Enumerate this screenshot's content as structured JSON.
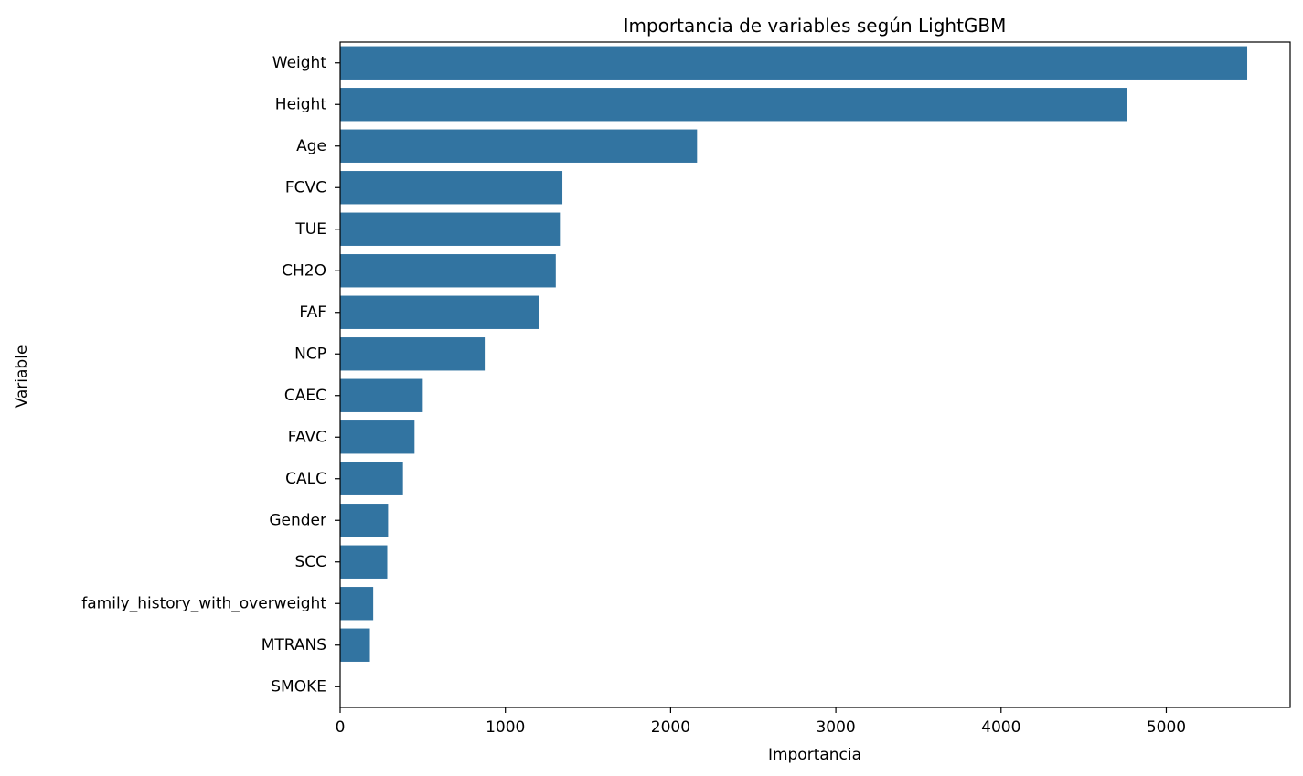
{
  "chart_data": {
    "type": "bar",
    "orientation": "horizontal",
    "title": "Importancia de variables según LightGBM",
    "xlabel": "Importancia",
    "ylabel": "Variable",
    "categories": [
      "Weight",
      "Height",
      "Age",
      "FCVC",
      "TUE",
      "CH2O",
      "FAF",
      "NCP",
      "CAEC",
      "FAVC",
      "CALC",
      "Gender",
      "SCC",
      "family_history_with_overweight",
      "MTRANS",
      "SMOKE"
    ],
    "values": [
      5490,
      4760,
      2160,
      1345,
      1330,
      1305,
      1205,
      875,
      500,
      450,
      380,
      290,
      285,
      200,
      180,
      0
    ],
    "xlim": [
      0,
      5750
    ],
    "xticks": [
      0,
      1000,
      2000,
      3000,
      4000,
      5000
    ],
    "bar_color": "#3274a1",
    "grid": false,
    "legend": "none"
  }
}
